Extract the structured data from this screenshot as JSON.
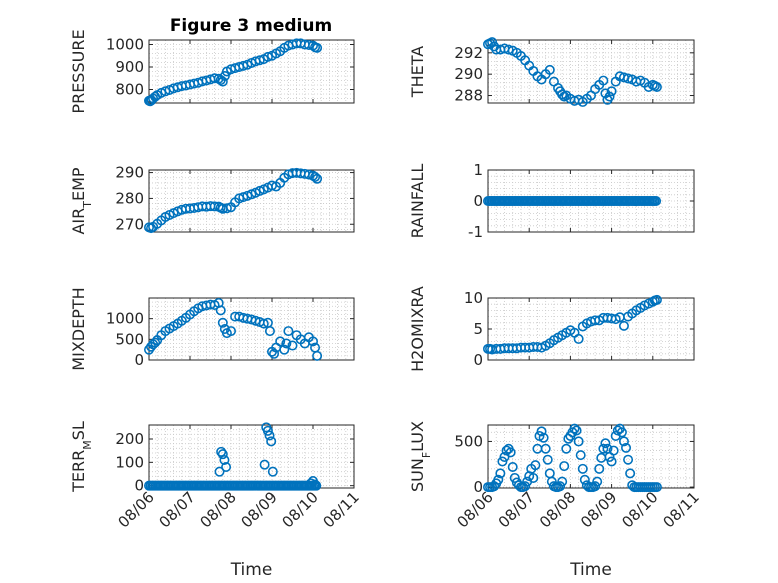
{
  "figure": {
    "title": "Figure 3 medium"
  },
  "style": {
    "marker_color": "#0072bd",
    "axis_color": "#262626",
    "grid_color": "#c8c8c8"
  },
  "chart_data": [
    {
      "type": "scatter",
      "id": "pressure",
      "ylabel": "PRESSURE",
      "xlim": [
        0,
        5
      ],
      "ylim": [
        740,
        1020
      ],
      "yticks": [
        800,
        900,
        1000
      ],
      "ytick_labels": [
        "800",
        "900",
        "1000"
      ],
      "xticks": [
        0,
        1,
        2,
        3,
        4,
        5
      ],
      "grid": true,
      "show_xticklabels": false,
      "title": "Figure 3 medium",
      "x": [
        0.0,
        0.03,
        0.06,
        0.1,
        0.15,
        0.2,
        0.3,
        0.4,
        0.5,
        0.6,
        0.7,
        0.8,
        0.9,
        1.0,
        1.1,
        1.2,
        1.3,
        1.4,
        1.5,
        1.6,
        1.7,
        1.75,
        1.8,
        1.85,
        1.9,
        2.0,
        2.1,
        2.2,
        2.3,
        2.4,
        2.5,
        2.6,
        2.7,
        2.8,
        2.9,
        3.0,
        3.1,
        3.2,
        3.3,
        3.4,
        3.5,
        3.6,
        3.7,
        3.8,
        3.9,
        4.0,
        4.05,
        4.1
      ],
      "y": [
        750,
        748,
        752,
        760,
        768,
        775,
        785,
        792,
        798,
        805,
        810,
        815,
        818,
        822,
        826,
        830,
        836,
        840,
        845,
        850,
        848,
        842,
        835,
        860,
        880,
        890,
        895,
        900,
        905,
        910,
        918,
        925,
        930,
        935,
        945,
        950,
        960,
        970,
        985,
        995,
        1000,
        1005,
        1005,
        1000,
        998,
        995,
        988,
        985
      ]
    },
    {
      "type": "scatter",
      "id": "theta",
      "ylabel": "THETA",
      "xlim": [
        0,
        5
      ],
      "ylim": [
        287.3,
        293.2
      ],
      "yticks": [
        288,
        290,
        292
      ],
      "ytick_labels": [
        "288",
        "290",
        "292"
      ],
      "xticks": [
        0,
        1,
        2,
        3,
        4,
        5
      ],
      "grid": true,
      "show_xticklabels": false,
      "x": [
        0.0,
        0.05,
        0.1,
        0.15,
        0.2,
        0.3,
        0.4,
        0.5,
        0.6,
        0.7,
        0.8,
        0.9,
        1.0,
        1.1,
        1.2,
        1.3,
        1.4,
        1.5,
        1.6,
        1.7,
        1.75,
        1.8,
        1.85,
        1.9,
        2.0,
        2.1,
        2.2,
        2.3,
        2.4,
        2.5,
        2.6,
        2.7,
        2.8,
        2.85,
        2.9,
        2.95,
        3.0,
        3.1,
        3.2,
        3.3,
        3.4,
        3.5,
        3.6,
        3.7,
        3.8,
        3.9,
        4.0,
        4.05,
        4.1
      ],
      "y": [
        292.8,
        292.9,
        293.0,
        292.6,
        292.3,
        292.3,
        292.4,
        292.3,
        292.2,
        292.0,
        291.7,
        291.3,
        290.8,
        290.3,
        289.8,
        289.5,
        290.0,
        290.4,
        289.3,
        288.7,
        288.4,
        288.1,
        287.9,
        288.0,
        287.7,
        287.5,
        287.6,
        287.4,
        287.7,
        288.0,
        288.6,
        289.0,
        289.4,
        288.2,
        287.6,
        287.9,
        288.4,
        289.3,
        289.8,
        289.7,
        289.6,
        289.5,
        289.3,
        289.4,
        289.2,
        288.8,
        289.0,
        288.9,
        288.8
      ]
    },
    {
      "type": "scatter",
      "id": "air_temp",
      "ylabel": "AIR_TEMP",
      "xlim": [
        0,
        5
      ],
      "ylim": [
        267,
        291
      ],
      "yticks": [
        270,
        280,
        290
      ],
      "ytick_labels": [
        "270",
        "280",
        "290"
      ],
      "xticks": [
        0,
        1,
        2,
        3,
        4,
        5
      ],
      "grid": true,
      "show_xticklabels": false,
      "x": [
        0.0,
        0.05,
        0.1,
        0.2,
        0.3,
        0.4,
        0.5,
        0.6,
        0.7,
        0.8,
        0.9,
        1.0,
        1.1,
        1.2,
        1.3,
        1.4,
        1.5,
        1.6,
        1.7,
        1.75,
        1.8,
        1.9,
        2.0,
        2.1,
        2.2,
        2.3,
        2.4,
        2.5,
        2.6,
        2.7,
        2.8,
        2.9,
        3.0,
        3.1,
        3.2,
        3.3,
        3.4,
        3.5,
        3.6,
        3.7,
        3.8,
        3.9,
        4.0,
        4.05,
        4.1
      ],
      "y": [
        268.8,
        268.5,
        269.0,
        270.2,
        271.5,
        272.8,
        273.6,
        274.3,
        275.0,
        275.6,
        276.0,
        276.1,
        276.3,
        276.6,
        276.9,
        276.8,
        277.0,
        276.9,
        276.8,
        276.4,
        276.0,
        276.2,
        276.6,
        278.5,
        280.0,
        280.5,
        281.0,
        281.6,
        282.2,
        282.9,
        283.5,
        284.2,
        285.0,
        284.6,
        286.0,
        288.0,
        289.3,
        289.8,
        289.9,
        289.7,
        289.5,
        289.2,
        288.8,
        288.3,
        287.6
      ]
    },
    {
      "type": "scatter",
      "id": "rainfall",
      "ylabel": "RAINFALL",
      "xlim": [
        0,
        5
      ],
      "ylim": [
        -1,
        1
      ],
      "yticks": [
        -1,
        0,
        1
      ],
      "ytick_labels": [
        "-1",
        "0",
        "1"
      ],
      "xticks": [
        0,
        1,
        2,
        3,
        4,
        5
      ],
      "grid": true,
      "show_xticklabels": false,
      "x_start": 0,
      "x_end": 4.1,
      "x_step": 0.04,
      "constant_y": 0
    },
    {
      "type": "scatter",
      "id": "mixdepth",
      "ylabel": "MIXDEPTH",
      "xlim": [
        0,
        5
      ],
      "ylim": [
        0,
        1500
      ],
      "yticks": [
        0,
        500,
        1000
      ],
      "ytick_labels": [
        "0",
        "500",
        "1000"
      ],
      "xticks": [
        0,
        1,
        2,
        3,
        4,
        5
      ],
      "grid": true,
      "show_xticklabels": false,
      "x": [
        0.0,
        0.05,
        0.1,
        0.15,
        0.2,
        0.3,
        0.4,
        0.5,
        0.6,
        0.7,
        0.8,
        0.9,
        1.0,
        1.1,
        1.2,
        1.3,
        1.4,
        1.5,
        1.6,
        1.7,
        1.75,
        1.8,
        1.85,
        1.9,
        2.0,
        2.1,
        2.2,
        2.3,
        2.4,
        2.5,
        2.6,
        2.7,
        2.8,
        2.9,
        2.95,
        3.0,
        3.05,
        3.1,
        3.2,
        3.3,
        3.35,
        3.4,
        3.5,
        3.6,
        3.7,
        3.8,
        3.9,
        4.0,
        4.05,
        4.1
      ],
      "y": [
        250,
        320,
        380,
        420,
        480,
        600,
        700,
        760,
        820,
        880,
        950,
        1020,
        1100,
        1180,
        1250,
        1300,
        1320,
        1340,
        1330,
        1380,
        1200,
        900,
        750,
        650,
        700,
        1050,
        1050,
        1020,
        1000,
        980,
        950,
        920,
        880,
        900,
        700,
        200,
        150,
        300,
        450,
        250,
        400,
        700,
        350,
        600,
        500,
        400,
        550,
        450,
        300,
        100
      ]
    },
    {
      "type": "scatter",
      "id": "h2omixra",
      "ylabel": "H2OMIXRA",
      "xlim": [
        0,
        5
      ],
      "ylim": [
        0,
        10
      ],
      "yticks": [
        0,
        5,
        10
      ],
      "ytick_labels": [
        "0",
        "5",
        "10"
      ],
      "xticks": [
        0,
        1,
        2,
        3,
        4,
        5
      ],
      "grid": true,
      "show_xticklabels": false,
      "x": [
        0.0,
        0.05,
        0.1,
        0.2,
        0.3,
        0.4,
        0.5,
        0.6,
        0.7,
        0.8,
        0.9,
        1.0,
        1.1,
        1.2,
        1.3,
        1.4,
        1.5,
        1.6,
        1.7,
        1.8,
        1.9,
        2.0,
        2.1,
        2.2,
        2.3,
        2.4,
        2.5,
        2.6,
        2.7,
        2.8,
        2.9,
        3.0,
        3.1,
        3.2,
        3.3,
        3.4,
        3.5,
        3.6,
        3.7,
        3.8,
        3.9,
        4.0,
        4.05,
        4.1
      ],
      "y": [
        1.8,
        1.8,
        1.7,
        1.8,
        1.8,
        1.9,
        1.9,
        1.9,
        1.9,
        2.0,
        2.0,
        2.0,
        2.1,
        2.1,
        2.0,
        2.3,
        2.7,
        3.2,
        3.6,
        4.0,
        4.4,
        4.8,
        4.4,
        3.4,
        5.4,
        5.9,
        6.2,
        6.4,
        6.4,
        6.8,
        6.8,
        6.7,
        6.6,
        6.9,
        5.5,
        7.0,
        7.5,
        8.0,
        8.4,
        8.8,
        9.1,
        9.4,
        9.6,
        9.7
      ]
    },
    {
      "type": "scatter",
      "id": "terr_msl",
      "ylabel": "TERR_MSL",
      "xlim": [
        0,
        5
      ],
      "ylim": [
        -10,
        260
      ],
      "yticks": [
        0,
        100,
        200
      ],
      "ytick_labels": [
        "0",
        "100",
        "200"
      ],
      "xticks": [
        0,
        1,
        2,
        3,
        4,
        5
      ],
      "xtick_labels": [
        "08/06",
        "08/07",
        "08/08",
        "08/09",
        "08/10",
        "08/11"
      ],
      "xlabel": "Time",
      "grid": true,
      "show_xticklabels": true,
      "baseline_x_start": 0,
      "baseline_x_end": 4.1,
      "baseline_x_step": 0.04,
      "baseline_y": 0,
      "x": [
        1.72,
        1.76,
        1.8,
        1.84,
        1.88,
        2.82,
        2.86,
        2.9,
        2.94,
        2.98,
        3.02,
        3.95,
        4.0,
        4.05
      ],
      "y": [
        60,
        145,
        135,
        110,
        80,
        90,
        250,
        235,
        215,
        190,
        60,
        10,
        20,
        5
      ]
    },
    {
      "type": "scatter",
      "id": "sun_flux",
      "ylabel": "SUN_FLUX",
      "xlim": [
        0,
        5
      ],
      "ylim": [
        -10,
        680
      ],
      "yticks": [
        0,
        500
      ],
      "ytick_labels": [
        "0",
        "500"
      ],
      "xticks": [
        0,
        1,
        2,
        3,
        4,
        5
      ],
      "xtick_labels": [
        "08/06",
        "08/07",
        "08/08",
        "08/09",
        "08/10",
        "08/11"
      ],
      "xlabel": "Time",
      "grid": true,
      "show_xticklabels": true,
      "x": [
        0.0,
        0.05,
        0.1,
        0.15,
        0.2,
        0.25,
        0.3,
        0.35,
        0.4,
        0.45,
        0.5,
        0.55,
        0.6,
        0.65,
        0.7,
        0.75,
        0.8,
        0.85,
        0.9,
        0.95,
        1.0,
        1.05,
        1.1,
        1.15,
        1.2,
        1.25,
        1.3,
        1.35,
        1.4,
        1.45,
        1.5,
        1.55,
        1.6,
        1.65,
        1.7,
        1.75,
        1.8,
        1.85,
        1.9,
        1.95,
        2.0,
        2.05,
        2.1,
        2.15,
        2.2,
        2.25,
        2.3,
        2.35,
        2.4,
        2.45,
        2.5,
        2.55,
        2.6,
        2.65,
        2.7,
        2.75,
        2.8,
        2.85,
        2.9,
        2.95,
        3.0,
        3.05,
        3.1,
        3.15,
        3.2,
        3.25,
        3.3,
        3.35,
        3.4,
        3.45,
        3.5,
        3.55,
        3.6,
        3.65,
        3.7,
        3.75,
        3.8,
        3.85,
        3.9,
        3.95,
        4.0,
        4.05,
        4.1
      ],
      "y": [
        0,
        0,
        0,
        10,
        40,
        80,
        150,
        280,
        330,
        400,
        420,
        380,
        220,
        100,
        50,
        20,
        0,
        0,
        10,
        60,
        120,
        200,
        100,
        240,
        420,
        560,
        610,
        540,
        420,
        300,
        150,
        60,
        10,
        0,
        0,
        10,
        60,
        230,
        420,
        530,
        560,
        600,
        640,
        620,
        500,
        350,
        200,
        80,
        20,
        0,
        0,
        0,
        10,
        60,
        200,
        320,
        420,
        480,
        420,
        330,
        280,
        400,
        560,
        620,
        640,
        600,
        500,
        430,
        300,
        150,
        20,
        0,
        0,
        0,
        0,
        0,
        0,
        0,
        0,
        0,
        0,
        0,
        0
      ]
    }
  ]
}
